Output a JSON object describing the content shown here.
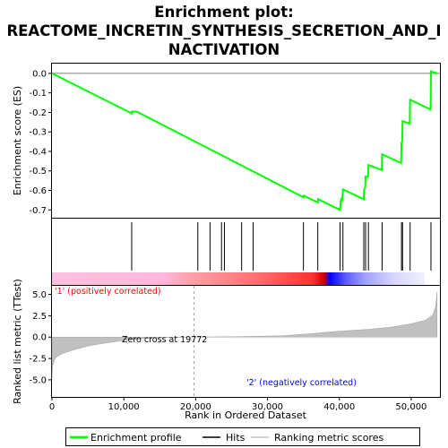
{
  "title_line1": "Enrichment plot:",
  "title_line2": "REACTOME_INCRETIN_SYNTHESIS_SECRETION_AND_I",
  "title_line3": "NACTIVATION",
  "colors": {
    "profile": "#00ff00",
    "hits": "#000000",
    "metric": "#c0c0c0",
    "positive_label": "#ff0000",
    "negative_label": "#0000ff"
  },
  "chart_data": {
    "type": "line",
    "x_max": 54000,
    "xlabel": "Rank in Ordered Dataset",
    "x_ticks": [
      0,
      10000,
      20000,
      30000,
      40000,
      50000
    ],
    "x_tick_labels": [
      "0",
      "10,000",
      "20,000",
      "30,000",
      "40,000",
      "50,000"
    ],
    "es_panel": {
      "ylabel": "Enrichment score (ES)",
      "ylim": [
        -0.74,
        0.05
      ],
      "y_ticks": [
        0.0,
        -0.1,
        -0.2,
        -0.3,
        -0.4,
        -0.5,
        -0.6,
        -0.7
      ],
      "y_tick_labels": [
        "0.0",
        "-0.1",
        "-0.2",
        "-0.3",
        "-0.4",
        "-0.5",
        "-0.6",
        "-0.7"
      ],
      "series_name": "Enrichment profile",
      "profile": [
        [
          0,
          0.0
        ],
        [
          11100,
          -0.205
        ],
        [
          11150,
          -0.195
        ],
        [
          11900,
          -0.198
        ],
        [
          35000,
          -0.635
        ],
        [
          35050,
          -0.627
        ],
        [
          37000,
          -0.662
        ],
        [
          37050,
          -0.645
        ],
        [
          40100,
          -0.7
        ],
        [
          40150,
          -0.68
        ],
        [
          40250,
          -0.645
        ],
        [
          40400,
          -0.65
        ],
        [
          40500,
          -0.595
        ],
        [
          43400,
          -0.645
        ],
        [
          43450,
          -0.595
        ],
        [
          43600,
          -0.585
        ],
        [
          43650,
          -0.53
        ],
        [
          44000,
          -0.53
        ],
        [
          44050,
          -0.47
        ],
        [
          45900,
          -0.495
        ],
        [
          45950,
          -0.415
        ],
        [
          48600,
          -0.46
        ],
        [
          48650,
          -0.355
        ],
        [
          48750,
          -0.35
        ],
        [
          48800,
          -0.245
        ],
        [
          49800,
          -0.258
        ],
        [
          49850,
          -0.135
        ],
        [
          52700,
          -0.185
        ],
        [
          52750,
          0.01
        ],
        [
          53600,
          0.0
        ]
      ]
    },
    "hits_panel": {
      "series_name": "Hits",
      "hits": [
        11100,
        20300,
        22000,
        23600,
        24000,
        26400,
        28000,
        35000,
        37000,
        40100,
        40500,
        43400,
        43650,
        44050,
        45950,
        48650,
        48800,
        49850,
        52750
      ]
    },
    "heat_bar": {
      "positive_color": "#ff0000",
      "negative_color": "#0000ff",
      "neutral_color": "#ffc0e0"
    },
    "metric_panel": {
      "ylabel": "Ranked list metric (TTest)",
      "ylim": [
        -7.0,
        6.0
      ],
      "y_ticks": [
        5.0,
        2.5,
        0.0,
        -2.5,
        -5.0
      ],
      "y_tick_labels": [
        "5.0",
        "2.5",
        "0.0",
        "-2.5",
        "-5.0"
      ],
      "series_name": "Ranking metric scores",
      "zero_cross": 19772,
      "zero_cross_label": "Zero cross at 19772",
      "positive_label": "'1' (positively correlated)",
      "negative_label": "'2' (negatively correlated)",
      "curve": [
        [
          0,
          -4.8
        ],
        [
          100,
          -3.3
        ],
        [
          500,
          -2.4
        ],
        [
          1500,
          -1.9
        ],
        [
          3000,
          -1.5
        ],
        [
          5000,
          -1.05
        ],
        [
          7000,
          -0.75
        ],
        [
          10000,
          -0.4
        ],
        [
          13000,
          -0.15
        ],
        [
          16000,
          -0.05
        ],
        [
          19772,
          0.0
        ],
        [
          25000,
          0.05
        ],
        [
          32000,
          0.15
        ],
        [
          36000,
          0.4
        ],
        [
          40000,
          0.7
        ],
        [
          44000,
          0.9
        ],
        [
          47000,
          1.15
        ],
        [
          50000,
          1.55
        ],
        [
          52000,
          2.0
        ],
        [
          53000,
          2.6
        ],
        [
          53400,
          3.6
        ],
        [
          53600,
          5.3
        ]
      ]
    }
  },
  "legend": {
    "items": [
      {
        "label": "Enrichment profile",
        "color": "#00ff00"
      },
      {
        "label": "Hits",
        "color": "#000000"
      },
      {
        "label": "Ranking metric scores",
        "color": "#c0c0c0"
      }
    ]
  }
}
